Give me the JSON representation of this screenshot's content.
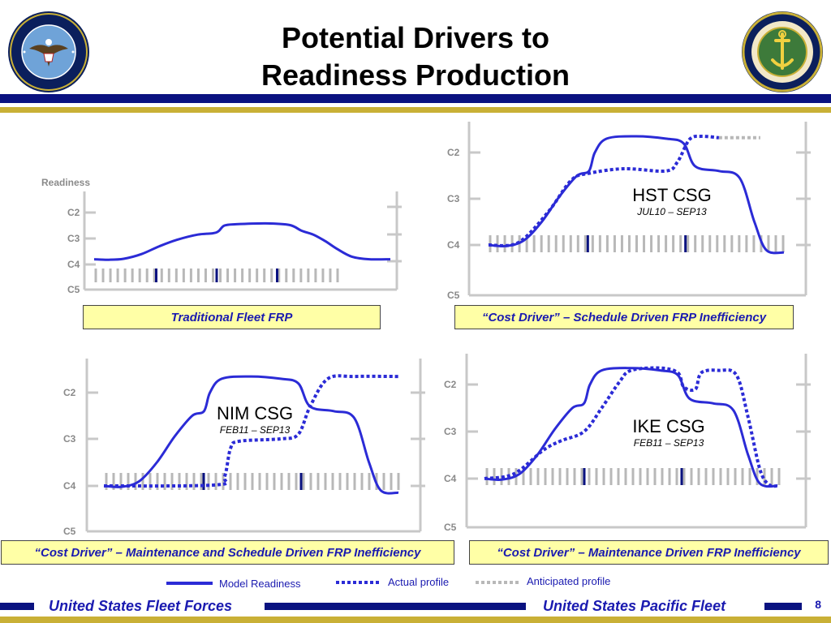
{
  "title": "Potential Drivers to Readiness Production",
  "title_line1": "Potential Drivers to",
  "title_line2": "Readiness Production",
  "logos": {
    "left": "United States Fleet Forces Command seal",
    "right": "Commander United States Pacific Fleet seal"
  },
  "colors": {
    "navy": "#0a1280",
    "gold": "#c9b036",
    "model": "#2b2bd6",
    "actual": "#2b2bd6",
    "anticipated": "#b8b8b8",
    "caption_bg": "#ffffa6",
    "caption_text": "#1a1ab0"
  },
  "chart_data": [
    {
      "type": "line",
      "caption": "Traditional Fleet FRP",
      "ylabel": "Readiness",
      "yticks": [
        "C2",
        "C3",
        "C4",
        "C5"
      ],
      "series": [
        {
          "name": "Model Readiness",
          "style": "solid",
          "points": [
            [
              0,
              3.8
            ],
            [
              0.05,
              3.82
            ],
            [
              0.1,
              3.78
            ],
            [
              0.16,
              3.6
            ],
            [
              0.22,
              3.3
            ],
            [
              0.28,
              3.05
            ],
            [
              0.35,
              2.85
            ],
            [
              0.4,
              2.8
            ],
            [
              0.42,
              2.72
            ],
            [
              0.44,
              2.5
            ],
            [
              0.48,
              2.45
            ],
            [
              0.58,
              2.42
            ],
            [
              0.66,
              2.48
            ],
            [
              0.7,
              2.7
            ],
            [
              0.74,
              2.85
            ],
            [
              0.78,
              3.1
            ],
            [
              0.82,
              3.4
            ],
            [
              0.87,
              3.7
            ],
            [
              0.93,
              3.8
            ],
            [
              1,
              3.8
            ]
          ]
        }
      ],
      "markers": 3
    },
    {
      "type": "line",
      "caption": "“Cost Driver” – Schedule Driven FRP Inefficiency",
      "unit": "HST CSG",
      "dates": "JUL10 – SEP13",
      "yticks": [
        "C2",
        "C3",
        "C4",
        "C5"
      ],
      "series": [
        {
          "name": "Model Readiness",
          "style": "solid",
          "points": [
            [
              0,
              4.0
            ],
            [
              0.06,
              4.02
            ],
            [
              0.12,
              3.9
            ],
            [
              0.18,
              3.5
            ],
            [
              0.24,
              2.95
            ],
            [
              0.3,
              2.5
            ],
            [
              0.34,
              2.4
            ],
            [
              0.36,
              2.0
            ],
            [
              0.4,
              1.7
            ],
            [
              0.5,
              1.65
            ],
            [
              0.6,
              1.7
            ],
            [
              0.66,
              1.8
            ],
            [
              0.7,
              2.3
            ],
            [
              0.78,
              2.4
            ],
            [
              0.85,
              2.55
            ],
            [
              0.9,
              3.5
            ],
            [
              0.94,
              4.1
            ],
            [
              1,
              4.15
            ]
          ]
        },
        {
          "name": "Actual profile",
          "style": "dotted",
          "points": [
            [
              0,
              4.0
            ],
            [
              0.1,
              3.95
            ],
            [
              0.2,
              3.3
            ],
            [
              0.28,
              2.6
            ],
            [
              0.34,
              2.45
            ],
            [
              0.46,
              2.35
            ],
            [
              0.6,
              2.4
            ],
            [
              0.64,
              2.2
            ],
            [
              0.68,
              1.72
            ],
            [
              0.72,
              1.65
            ],
            [
              0.78,
              1.68
            ]
          ]
        },
        {
          "name": "Anticipated profile",
          "style": "gray-dotted",
          "points": [
            [
              0.78,
              1.68
            ],
            [
              0.92,
              1.68
            ]
          ]
        }
      ],
      "markers": 2
    },
    {
      "type": "line",
      "caption": "“Cost Driver” – Maintenance and Schedule Driven FRP Inefficiency",
      "unit": "NIM CSG",
      "dates": "FEB11 – SEP13",
      "yticks": [
        "C2",
        "C3",
        "C4",
        "C5"
      ],
      "series": [
        {
          "name": "Model Readiness",
          "style": "solid",
          "points": [
            [
              0,
              4.0
            ],
            [
              0.06,
              4.02
            ],
            [
              0.12,
              3.9
            ],
            [
              0.18,
              3.5
            ],
            [
              0.24,
              2.95
            ],
            [
              0.3,
              2.5
            ],
            [
              0.34,
              2.4
            ],
            [
              0.36,
              2.0
            ],
            [
              0.4,
              1.7
            ],
            [
              0.5,
              1.65
            ],
            [
              0.6,
              1.7
            ],
            [
              0.66,
              1.8
            ],
            [
              0.7,
              2.3
            ],
            [
              0.78,
              2.4
            ],
            [
              0.85,
              2.55
            ],
            [
              0.9,
              3.5
            ],
            [
              0.94,
              4.1
            ],
            [
              1,
              4.15
            ]
          ]
        },
        {
          "name": "Actual profile",
          "style": "dotted",
          "points": [
            [
              0,
              4.0
            ],
            [
              0.38,
              3.98
            ],
            [
              0.41,
              3.8
            ],
            [
              0.43,
              3.2
            ],
            [
              0.46,
              3.05
            ],
            [
              0.6,
              3.0
            ],
            [
              0.66,
              2.9
            ],
            [
              0.7,
              2.3
            ],
            [
              0.76,
              1.7
            ],
            [
              0.85,
              1.65
            ],
            [
              1,
              1.65
            ]
          ]
        }
      ],
      "markers": 2
    },
    {
      "type": "line",
      "caption": "“Cost Driver” – Maintenance Driven FRP Inefficiency",
      "unit": "IKE CSG",
      "dates": "FEB11 – SEP13",
      "yticks": [
        "C2",
        "C3",
        "C4",
        "C5"
      ],
      "series": [
        {
          "name": "Model Readiness",
          "style": "solid",
          "points": [
            [
              0,
              4.0
            ],
            [
              0.06,
              4.02
            ],
            [
              0.12,
              3.9
            ],
            [
              0.18,
              3.5
            ],
            [
              0.24,
              2.95
            ],
            [
              0.3,
              2.5
            ],
            [
              0.34,
              2.4
            ],
            [
              0.36,
              2.0
            ],
            [
              0.4,
              1.7
            ],
            [
              0.5,
              1.65
            ],
            [
              0.6,
              1.7
            ],
            [
              0.66,
              1.8
            ],
            [
              0.7,
              2.3
            ],
            [
              0.78,
              2.4
            ],
            [
              0.85,
              2.55
            ],
            [
              0.9,
              3.5
            ],
            [
              0.94,
              4.1
            ],
            [
              1,
              4.15
            ]
          ]
        },
        {
          "name": "Actual profile",
          "style": "dotted",
          "points": [
            [
              0,
              4.0
            ],
            [
              0.1,
              3.9
            ],
            [
              0.2,
              3.4
            ],
            [
              0.26,
              3.2
            ],
            [
              0.34,
              3.0
            ],
            [
              0.4,
              2.5
            ],
            [
              0.46,
              1.95
            ],
            [
              0.5,
              1.7
            ],
            [
              0.6,
              1.65
            ],
            [
              0.66,
              1.75
            ],
            [
              0.68,
              2.05
            ],
            [
              0.72,
              2.1
            ],
            [
              0.74,
              1.75
            ],
            [
              0.8,
              1.7
            ],
            [
              0.86,
              1.8
            ],
            [
              0.9,
              2.7
            ],
            [
              0.94,
              3.8
            ],
            [
              0.97,
              4.12
            ],
            [
              1,
              4.15
            ]
          ]
        }
      ],
      "markers": 2
    }
  ],
  "captions": [
    "Traditional Fleet FRP",
    "“Cost Driver” – Schedule Driven FRP Inefficiency",
    "“Cost Driver” – Maintenance and Schedule Driven FRP Inefficiency",
    "“Cost Driver” – Maintenance Driven FRP Inefficiency"
  ],
  "ylabel": "Readiness",
  "labels": {
    "c2": "C2",
    "c3": "C3",
    "c4": "C4",
    "c5": "C5"
  },
  "csg": [
    {
      "name": "HST CSG",
      "dates": "JUL10 – SEP13"
    },
    {
      "name": "NIM CSG",
      "dates": "FEB11 – SEP13"
    },
    {
      "name": "IKE CSG",
      "dates": "FEB11 – SEP13"
    }
  ],
  "legend": {
    "model": "Model Readiness",
    "actual": "Actual profile",
    "anticipated": "Anticipated profile"
  },
  "footer": {
    "left": "United States Fleet Forces",
    "right": "United States Pacific Fleet",
    "page": "8"
  }
}
